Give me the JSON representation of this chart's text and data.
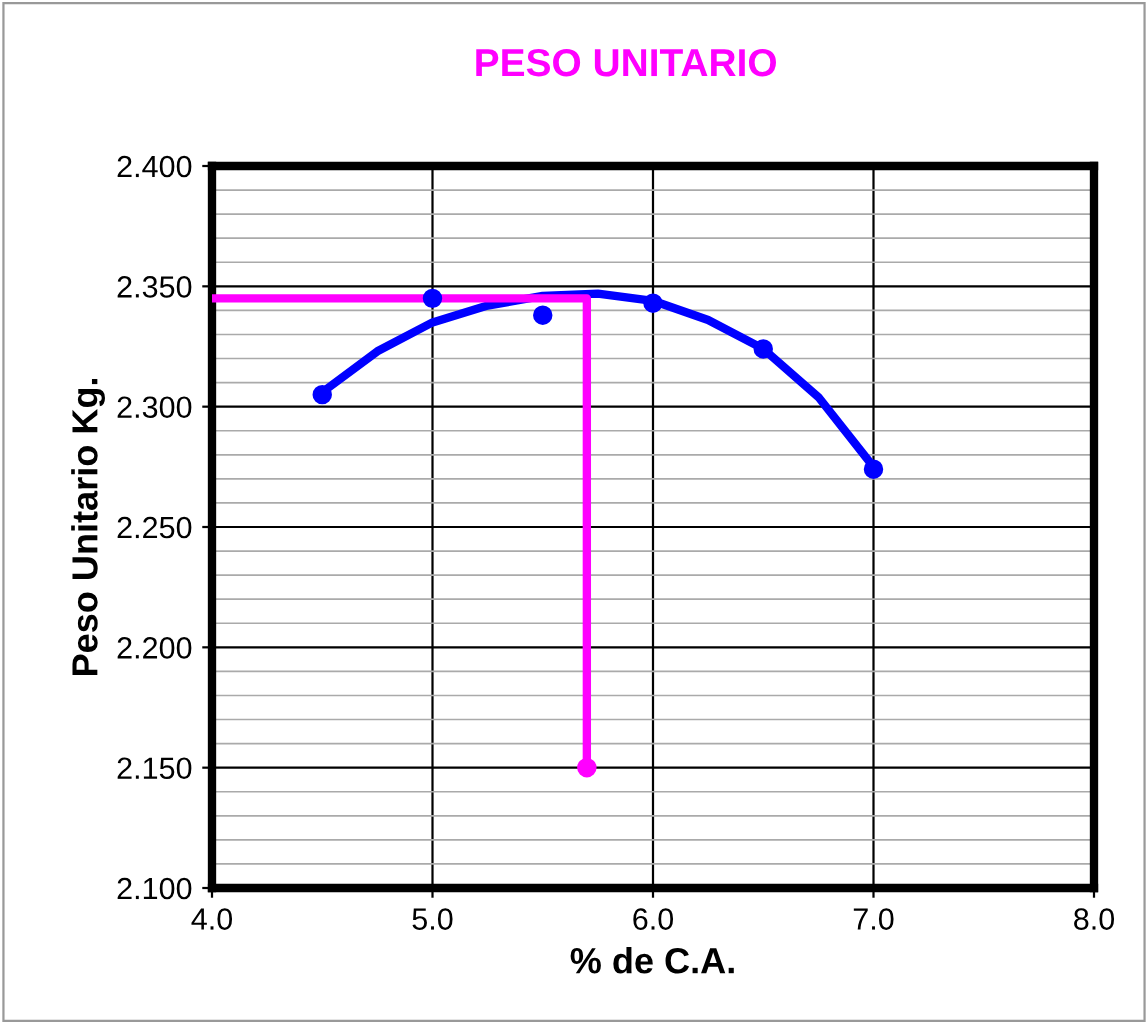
{
  "chart_data": {
    "type": "scatter",
    "title": "PESO UNITARIO",
    "xlabel": "% de C.A.",
    "ylabel": "Peso Unitario Kg.",
    "series": [
      {
        "color": "#0000ff",
        "marker": "circle",
        "x": [
          4.5,
          5.0,
          5.5,
          6.0,
          6.5,
          7.0
        ],
        "values": [
          2.305,
          2.345,
          2.338,
          2.343,
          2.324,
          2.274
        ]
      },
      {
        "type": "line",
        "color": "#0000ff",
        "marker": "none",
        "x": [
          4.5,
          4.75,
          5.0,
          5.25,
          5.5,
          5.75,
          6.0,
          6.25,
          6.5,
          6.75,
          7.0
        ],
        "values": [
          2.306,
          2.323,
          2.335,
          2.342,
          2.346,
          2.347,
          2.344,
          2.336,
          2.324,
          2.304,
          2.275
        ]
      },
      {
        "type": "line",
        "color": "#ff00ff",
        "marker": "none",
        "x": [
          4.0,
          5.7,
          5.7
        ],
        "values": [
          2.345,
          2.345,
          2.15
        ]
      },
      {
        "color": "#ff00ff",
        "marker": "circle",
        "x": [
          5.7
        ],
        "values": [
          2.15
        ]
      }
    ],
    "xlim": [
      4.0,
      8.0
    ],
    "xticks": [
      {
        "value": 4.0,
        "label": "4.0"
      },
      {
        "value": 5.0,
        "label": "5.0"
      },
      {
        "value": 6.0,
        "label": "6.0"
      },
      {
        "value": 7.0,
        "label": "7.0"
      },
      {
        "value": 8.0,
        "label": "8.0"
      }
    ],
    "ylim": [
      2.1,
      2.4
    ],
    "yticks": [
      {
        "value": 2.1,
        "label": "2.100"
      },
      {
        "value": 2.15,
        "label": "2.150"
      },
      {
        "value": 2.2,
        "label": "2.200"
      },
      {
        "value": 2.25,
        "label": "2.250"
      },
      {
        "value": 2.3,
        "label": "2.300"
      },
      {
        "value": 2.35,
        "label": "2.350"
      },
      {
        "value": 2.4,
        "label": "2.400"
      }
    ],
    "grid": true,
    "legend": false
  }
}
